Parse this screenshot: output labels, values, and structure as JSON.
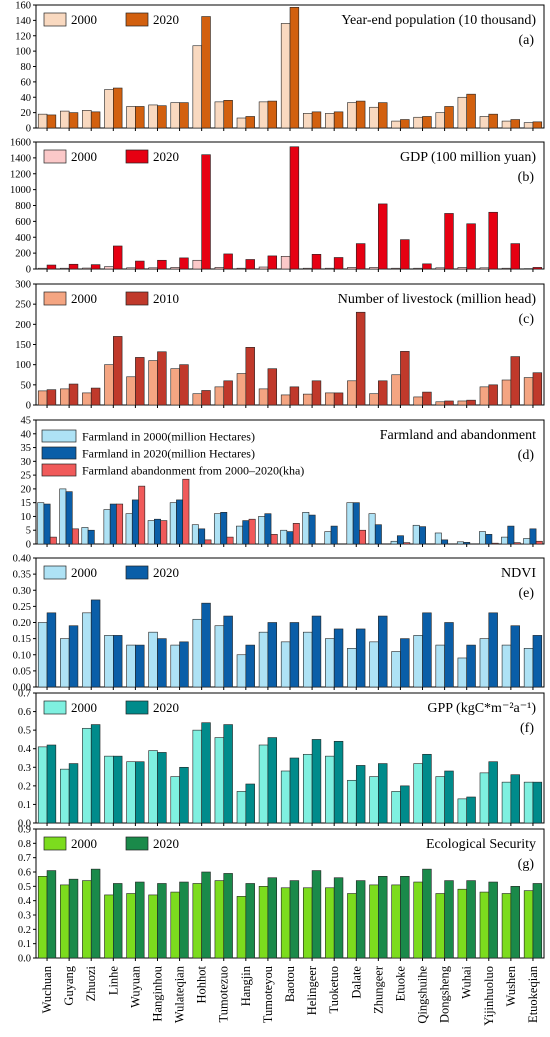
{
  "categories": [
    "Wuchuan",
    "Guyang",
    "Zhuozi",
    "Linhe",
    "Wuyuan",
    "Hanginhou",
    "Wulateqian",
    "Hohhot",
    "Tumotezuo",
    "Hangjin",
    "Tumoteyou",
    "Baotou",
    "Helingeer",
    "Tuoketuo",
    "Dalate",
    "Zhungeer",
    "Etuoke",
    "Qingshuihe",
    "Dongsheng",
    "Wuhai",
    "Yijinhuoluo",
    "Wushen",
    "Etuokeqian"
  ],
  "chart_data": [
    {
      "type": "bar",
      "title": "Year-end population (10 thousand)",
      "panel": "(a)",
      "ylim": [
        0,
        160
      ],
      "yticks": [
        0,
        20,
        40,
        60,
        80,
        100,
        120,
        140,
        160
      ],
      "legend_position": "top-left",
      "series": [
        {
          "name": "2000",
          "color": "#f9d9c0",
          "values": [
            18,
            22,
            23,
            50,
            28,
            30,
            33,
            107,
            34,
            13,
            34,
            136,
            19,
            19,
            33,
            27,
            9,
            14,
            20,
            40,
            15,
            9,
            7
          ]
        },
        {
          "name": "2020",
          "color": "#d2600f",
          "values": [
            17,
            20,
            21,
            52,
            28,
            29,
            33,
            145,
            36,
            15,
            35,
            157,
            21,
            21,
            35,
            33,
            11,
            15,
            28,
            44,
            18,
            11,
            8
          ]
        }
      ]
    },
    {
      "type": "bar",
      "title": "GDP (100 million yuan)",
      "panel": "(b)",
      "ylim": [
        0,
        1600
      ],
      "yticks": [
        0,
        200,
        400,
        600,
        800,
        1000,
        1200,
        1400,
        1600
      ],
      "legend_position": "top-left",
      "series": [
        {
          "name": "2000",
          "color": "#fbc8c8",
          "values": [
            10,
            10,
            12,
            30,
            15,
            15,
            20,
            110,
            20,
            10,
            25,
            160,
            10,
            10,
            20,
            20,
            10,
            10,
            15,
            20,
            15,
            10,
            5
          ]
        },
        {
          "name": "2020",
          "color": "#e60012",
          "values": [
            50,
            60,
            55,
            290,
            100,
            110,
            140,
            1440,
            190,
            120,
            165,
            1540,
            185,
            145,
            320,
            820,
            370,
            65,
            700,
            570,
            715,
            320,
            20
          ]
        }
      ]
    },
    {
      "type": "bar",
      "title": "Number of livestock (million head)",
      "panel": "(c)",
      "ylim": [
        0,
        300
      ],
      "yticks": [
        0,
        50,
        100,
        150,
        200,
        250,
        300
      ],
      "legend_position": "top-left",
      "series": [
        {
          "name": "2000",
          "color": "#f4a582",
          "values": [
            35,
            40,
            30,
            100,
            70,
            110,
            90,
            28,
            45,
            78,
            40,
            25,
            27,
            30,
            60,
            28,
            75,
            20,
            8,
            10,
            45,
            62,
            68
          ]
        },
        {
          "name": "2010",
          "color": "#c0392b",
          "values": [
            38,
            52,
            42,
            170,
            118,
            132,
            100,
            36,
            60,
            143,
            90,
            45,
            60,
            30,
            230,
            60,
            133,
            32,
            10,
            12,
            50,
            120,
            80
          ]
        }
      ]
    },
    {
      "type": "bar",
      "title": "Farmland and abandonment",
      "panel": "(d)",
      "ylim": [
        0,
        45
      ],
      "yticks": [
        0,
        5,
        10,
        15,
        20,
        25,
        30,
        35,
        40,
        45
      ],
      "legend_position": "top-left",
      "series": [
        {
          "name": "Farmland in 2000(million Hectares)",
          "color": "#aee2f5",
          "values": [
            15,
            20,
            6,
            12.5,
            11,
            8.5,
            15,
            7,
            11,
            6.5,
            10,
            5,
            11.5,
            4.5,
            15,
            11,
            1,
            6.8,
            4,
            0.8,
            4.5,
            2.5,
            2
          ]
        },
        {
          "name": "Farmland in 2020(million Hectares)",
          "color": "#0a5ea8",
          "values": [
            14.5,
            19,
            5,
            14.5,
            16,
            9,
            16,
            5.5,
            11.5,
            8.5,
            11,
            4.5,
            10.5,
            6.5,
            15,
            7,
            3,
            6.3,
            1.5,
            0.6,
            3.5,
            6.5,
            5.5
          ]
        },
        {
          "name": "Farmland abandonment from 2000–2020(kha)",
          "color": "#f05a5a",
          "values": [
            2.5,
            5.5,
            0,
            14.5,
            21,
            8.5,
            23.5,
            1.5,
            2.5,
            9,
            3.5,
            7.5,
            0,
            0,
            5,
            0,
            0.5,
            0,
            0,
            0,
            0.3,
            0.5,
            1
          ]
        }
      ]
    },
    {
      "type": "bar",
      "title": "NDVI",
      "panel": "(e)",
      "ylim": [
        0,
        0.4
      ],
      "yticks": [
        0.0,
        0.05,
        0.1,
        0.15,
        0.2,
        0.25,
        0.3,
        0.35,
        0.4
      ],
      "legend_position": "top-left",
      "series": [
        {
          "name": "2000",
          "color": "#aee2f5",
          "values": [
            0.2,
            0.15,
            0.23,
            0.16,
            0.13,
            0.17,
            0.13,
            0.21,
            0.19,
            0.1,
            0.17,
            0.14,
            0.17,
            0.15,
            0.12,
            0.14,
            0.11,
            0.16,
            0.13,
            0.09,
            0.15,
            0.13,
            0.12
          ]
        },
        {
          "name": "2020",
          "color": "#0a5ea8",
          "values": [
            0.23,
            0.19,
            0.27,
            0.16,
            0.13,
            0.15,
            0.14,
            0.26,
            0.22,
            0.13,
            0.2,
            0.2,
            0.22,
            0.18,
            0.18,
            0.22,
            0.15,
            0.23,
            0.2,
            0.13,
            0.23,
            0.19,
            0.16
          ]
        }
      ]
    },
    {
      "type": "bar",
      "title": "GPP (kgC*m⁻²a⁻¹)",
      "panel": "(f)",
      "ylim": [
        0,
        0.7
      ],
      "yticks": [
        0.0,
        0.1,
        0.2,
        0.3,
        0.4,
        0.5,
        0.6,
        0.7
      ],
      "legend_position": "top-left",
      "series": [
        {
          "name": "2000",
          "color": "#7ff0e0",
          "values": [
            0.41,
            0.29,
            0.51,
            0.36,
            0.33,
            0.39,
            0.25,
            0.5,
            0.46,
            0.17,
            0.42,
            0.28,
            0.37,
            0.36,
            0.23,
            0.25,
            0.17,
            0.32,
            0.25,
            0.13,
            0.27,
            0.22,
            0.22
          ]
        },
        {
          "name": "2020",
          "color": "#008b8b",
          "values": [
            0.42,
            0.32,
            0.53,
            0.36,
            0.33,
            0.38,
            0.3,
            0.54,
            0.53,
            0.21,
            0.46,
            0.35,
            0.45,
            0.44,
            0.31,
            0.32,
            0.2,
            0.37,
            0.28,
            0.14,
            0.33,
            0.26,
            0.22
          ]
        }
      ]
    },
    {
      "type": "bar",
      "title": "Ecological Security",
      "panel": "(g)",
      "ylim": [
        0,
        0.9
      ],
      "yticks": [
        0.0,
        0.1,
        0.2,
        0.3,
        0.4,
        0.5,
        0.6,
        0.7,
        0.8,
        0.9
      ],
      "legend_position": "top-left",
      "series": [
        {
          "name": "2000",
          "color": "#7cdc1e",
          "values": [
            0.57,
            0.51,
            0.54,
            0.44,
            0.45,
            0.44,
            0.46,
            0.52,
            0.54,
            0.43,
            0.5,
            0.49,
            0.49,
            0.49,
            0.45,
            0.51,
            0.51,
            0.53,
            0.45,
            0.48,
            0.46,
            0.45,
            0.47
          ]
        },
        {
          "name": "2020",
          "color": "#1a8a4a",
          "values": [
            0.61,
            0.55,
            0.62,
            0.52,
            0.53,
            0.52,
            0.53,
            0.6,
            0.59,
            0.52,
            0.56,
            0.54,
            0.61,
            0.56,
            0.54,
            0.57,
            0.57,
            0.62,
            0.54,
            0.54,
            0.53,
            0.5,
            0.52
          ]
        }
      ]
    }
  ]
}
